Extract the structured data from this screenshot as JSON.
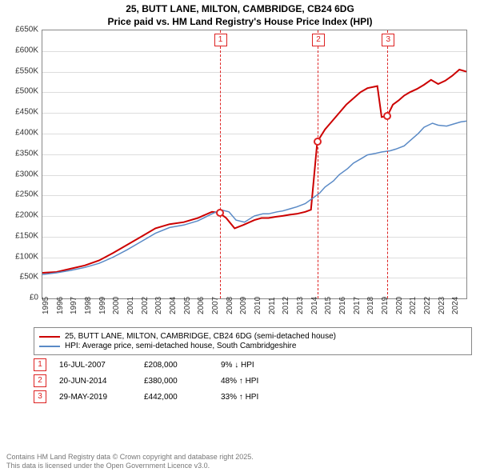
{
  "title_line1": "25, BUTT LANE, MILTON, CAMBRIDGE, CB24 6DG",
  "title_line2": "Price paid vs. HM Land Registry's House Price Index (HPI)",
  "chart": {
    "x_start_year": 1995,
    "x_end_year": 2025,
    "xlabels": [
      "1995",
      "1996",
      "1997",
      "1998",
      "1999",
      "2000",
      "2001",
      "2002",
      "2003",
      "2004",
      "2005",
      "2006",
      "2007",
      "2008",
      "2009",
      "2010",
      "2011",
      "2012",
      "2013",
      "2014",
      "2015",
      "2016",
      "2017",
      "2018",
      "2019",
      "2020",
      "2021",
      "2022",
      "2023",
      "2024"
    ],
    "ymin": 0,
    "ymax": 650,
    "ytick_step": 50,
    "ylabels": [
      "£0",
      "£50K",
      "£100K",
      "£150K",
      "£200K",
      "£250K",
      "£300K",
      "£350K",
      "£400K",
      "£450K",
      "£500K",
      "£550K",
      "£600K",
      "£650K"
    ],
    "grid_color": "#dddddd",
    "border_color": "#888888",
    "background": "#ffffff",
    "series": [
      {
        "name": "price_paid",
        "color": "#cc0000",
        "width": 2,
        "data": [
          [
            1995.0,
            62
          ],
          [
            1996.0,
            64
          ],
          [
            1997.0,
            72
          ],
          [
            1998.0,
            80
          ],
          [
            1999.0,
            92
          ],
          [
            2000.0,
            110
          ],
          [
            2001.0,
            130
          ],
          [
            2002.0,
            150
          ],
          [
            2003.0,
            170
          ],
          [
            2004.0,
            180
          ],
          [
            2005.0,
            185
          ],
          [
            2006.0,
            195
          ],
          [
            2007.0,
            210
          ],
          [
            2007.5,
            208
          ],
          [
            2008.0,
            195
          ],
          [
            2008.6,
            170
          ],
          [
            2009.2,
            178
          ],
          [
            2010.0,
            190
          ],
          [
            2010.5,
            195
          ],
          [
            2011.0,
            195
          ],
          [
            2011.5,
            198
          ],
          [
            2012.0,
            200
          ],
          [
            2012.5,
            203
          ],
          [
            2013.0,
            205
          ],
          [
            2013.6,
            210
          ],
          [
            2014.0,
            215
          ],
          [
            2014.45,
            380
          ],
          [
            2015.0,
            410
          ],
          [
            2015.5,
            430
          ],
          [
            2016.0,
            450
          ],
          [
            2016.5,
            470
          ],
          [
            2017.0,
            485
          ],
          [
            2017.5,
            500
          ],
          [
            2018.0,
            510
          ],
          [
            2018.7,
            515
          ],
          [
            2019.0,
            440
          ],
          [
            2019.4,
            442
          ],
          [
            2019.8,
            470
          ],
          [
            2020.2,
            480
          ],
          [
            2020.6,
            492
          ],
          [
            2021.0,
            500
          ],
          [
            2021.5,
            508
          ],
          [
            2022.0,
            518
          ],
          [
            2022.5,
            530
          ],
          [
            2023.0,
            520
          ],
          [
            2023.5,
            528
          ],
          [
            2024.0,
            540
          ],
          [
            2024.5,
            555
          ],
          [
            2025.0,
            550
          ]
        ]
      },
      {
        "name": "hpi",
        "color": "#5a8ac6",
        "width": 1.5,
        "data": [
          [
            1995.0,
            58
          ],
          [
            1996.0,
            62
          ],
          [
            1997.0,
            68
          ],
          [
            1998.0,
            75
          ],
          [
            1999.0,
            85
          ],
          [
            2000.0,
            100
          ],
          [
            2001.0,
            118
          ],
          [
            2002.0,
            138
          ],
          [
            2003.0,
            158
          ],
          [
            2004.0,
            172
          ],
          [
            2005.0,
            178
          ],
          [
            2006.0,
            188
          ],
          [
            2007.0,
            205
          ],
          [
            2007.6,
            215
          ],
          [
            2008.2,
            210
          ],
          [
            2008.7,
            190
          ],
          [
            2009.3,
            185
          ],
          [
            2010.0,
            200
          ],
          [
            2010.6,
            205
          ],
          [
            2011.0,
            205
          ],
          [
            2011.6,
            210
          ],
          [
            2012.0,
            212
          ],
          [
            2012.6,
            218
          ],
          [
            2013.0,
            222
          ],
          [
            2013.6,
            230
          ],
          [
            2014.0,
            240
          ],
          [
            2014.6,
            255
          ],
          [
            2015.0,
            270
          ],
          [
            2015.6,
            285
          ],
          [
            2016.0,
            300
          ],
          [
            2016.6,
            315
          ],
          [
            2017.0,
            328
          ],
          [
            2017.6,
            340
          ],
          [
            2018.0,
            348
          ],
          [
            2018.6,
            352
          ],
          [
            2019.0,
            355
          ],
          [
            2019.6,
            358
          ],
          [
            2020.0,
            362
          ],
          [
            2020.6,
            370
          ],
          [
            2021.0,
            382
          ],
          [
            2021.6,
            400
          ],
          [
            2022.0,
            415
          ],
          [
            2022.6,
            425
          ],
          [
            2023.0,
            420
          ],
          [
            2023.6,
            418
          ],
          [
            2024.0,
            422
          ],
          [
            2024.6,
            428
          ],
          [
            2025.0,
            430
          ]
        ]
      }
    ],
    "event_markers": [
      {
        "n": "1",
        "year": 2007.54,
        "value": 208
      },
      {
        "n": "2",
        "year": 2014.47,
        "value": 380
      },
      {
        "n": "3",
        "year": 2019.41,
        "value": 442
      }
    ]
  },
  "legend": {
    "rows": [
      {
        "color": "#cc0000",
        "label": "25, BUTT LANE, MILTON, CAMBRIDGE, CB24 6DG (semi-detached house)"
      },
      {
        "color": "#5a8ac6",
        "label": "HPI: Average price, semi-detached house, South Cambridgeshire"
      }
    ]
  },
  "events_table": [
    {
      "n": "1",
      "date": "16-JUL-2007",
      "price": "£208,000",
      "pct": "9% ↓ HPI"
    },
    {
      "n": "2",
      "date": "20-JUN-2014",
      "price": "£380,000",
      "pct": "48% ↑ HPI"
    },
    {
      "n": "3",
      "date": "29-MAY-2019",
      "price": "£442,000",
      "pct": "33% ↑ HPI"
    }
  ],
  "footer_line1": "Contains HM Land Registry data © Crown copyright and database right 2025.",
  "footer_line2": "This data is licensed under the Open Government Licence v3.0."
}
